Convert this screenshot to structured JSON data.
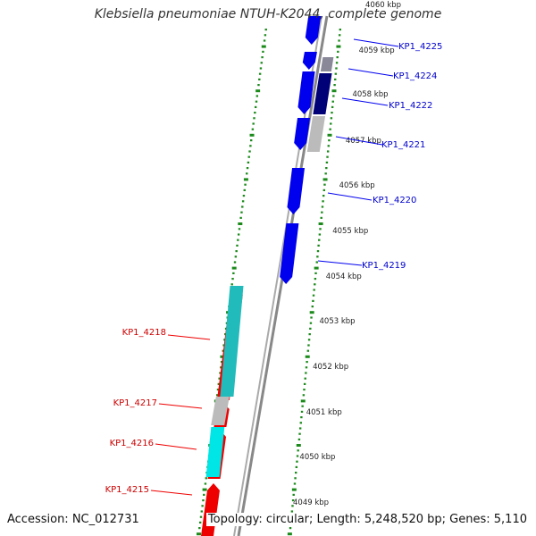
{
  "title": "Klebsiella pneumoniae NTUH-K2044, complete genome",
  "accession": "Accession: NC_012731",
  "topology": "Topology: circular; Length: 5,248,520 bp; Genes: 5,110",
  "colors": {
    "forward": "#0000ee",
    "forward_dark": "#000077",
    "reverse": "#ee0000",
    "reverse_alt": "#22bbbb",
    "reverse_cyan": "#00e6e6",
    "gray": "#bbbbbb",
    "backbone": "#888888",
    "tick": "#1b8a1b",
    "label_forward": "#0000cc",
    "label_reverse": "#cc0000"
  },
  "scale_labels": [
    "4049 kbp",
    "4050 kbp",
    "4051 kbp",
    "4052 kbp",
    "4053 kbp",
    "4054 kbp",
    "4055 kbp",
    "4056 kbp",
    "4057 kbp",
    "4058 kbp",
    "4059 kbp",
    "4060 kbp"
  ],
  "forward_genes": [
    {
      "label": "KP1_4225"
    },
    {
      "label": "KP1_4224"
    },
    {
      "label": "KP1_4222"
    },
    {
      "label": "KP1_4221"
    },
    {
      "label": "KP1_4220"
    },
    {
      "label": "KP1_4219"
    }
  ],
  "reverse_genes": [
    {
      "label": "KP1_4218"
    },
    {
      "label": "KP1_4217"
    },
    {
      "label": "KP1_4216"
    },
    {
      "label": "KP1_4215"
    }
  ]
}
